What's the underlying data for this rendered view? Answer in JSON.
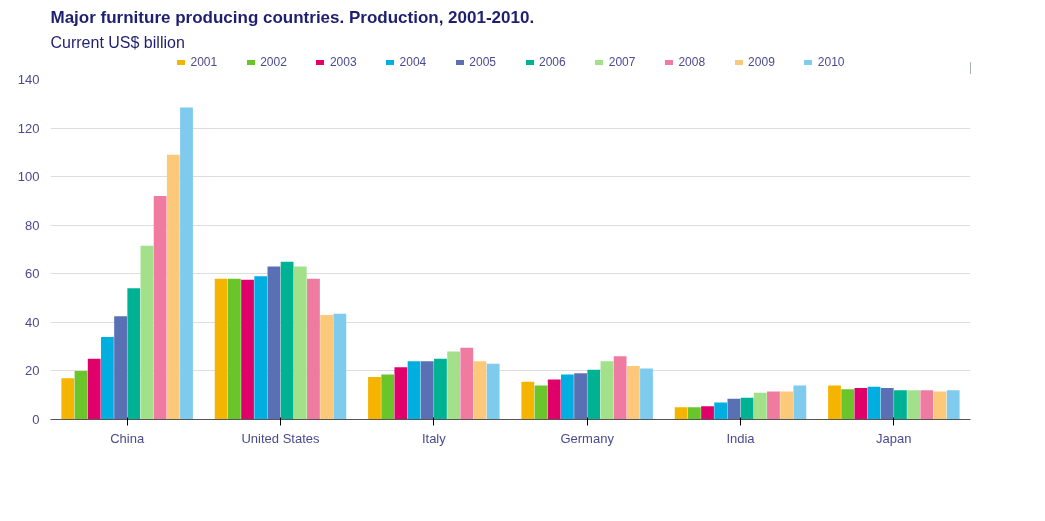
{
  "chart_data": {
    "type": "bar",
    "title": "Major furniture producing countries. Production, 2001-2010.",
    "subtitle": "Current US$ billion",
    "categories": [
      "China",
      "United States",
      "Italy",
      "Germany",
      "India",
      "Japan"
    ],
    "series": [
      {
        "name": "2001",
        "color": "#f5b400",
        "values": [
          17,
          58,
          17.5,
          15.5,
          5,
          14
        ]
      },
      {
        "name": "2002",
        "color": "#6ac52a",
        "values": [
          20,
          58,
          18.5,
          14,
          5,
          12.5
        ]
      },
      {
        "name": "2003",
        "color": "#e0006a",
        "values": [
          25,
          57.5,
          21.5,
          16.5,
          5.5,
          13
        ]
      },
      {
        "name": "2004",
        "color": "#00aee0",
        "values": [
          34,
          59,
          24,
          18.5,
          7,
          13.5
        ]
      },
      {
        "name": "2005",
        "color": "#5a70b5",
        "values": [
          42.5,
          63,
          24,
          19,
          8.5,
          13
        ]
      },
      {
        "name": "2006",
        "color": "#00b294",
        "values": [
          54,
          65,
          25,
          20.5,
          9,
          12
        ]
      },
      {
        "name": "2007",
        "color": "#a3e08a",
        "values": [
          71.5,
          63,
          28,
          24,
          11,
          12
        ]
      },
      {
        "name": "2008",
        "color": "#f07ba0",
        "values": [
          92,
          58,
          29.5,
          26,
          11.5,
          12
        ]
      },
      {
        "name": "2009",
        "color": "#fbc979",
        "values": [
          109,
          43,
          24,
          22,
          11.5,
          11.5
        ]
      },
      {
        "name": "2010",
        "color": "#7ecbee",
        "values": [
          128.5,
          43.5,
          23,
          21,
          14,
          12
        ]
      }
    ],
    "ylim": [
      0,
      140
    ],
    "yticks": [
      0,
      20,
      40,
      60,
      80,
      100,
      120,
      140
    ],
    "grid": "y",
    "legend": "top"
  }
}
